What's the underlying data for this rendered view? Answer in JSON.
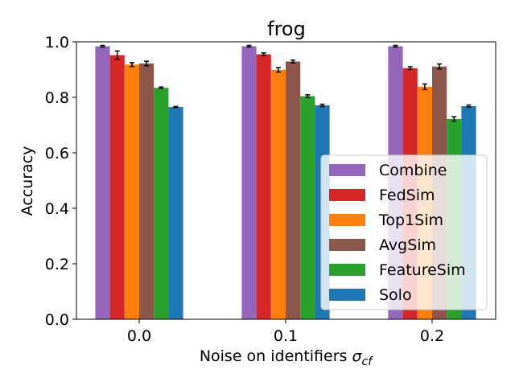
{
  "chart_data": {
    "type": "bar",
    "title": "frog",
    "xlabel_prefix": "Noise on identifiers ",
    "xlabel_symbol": "σ",
    "xlabel_subscript": "cf",
    "ylabel": "Accuracy",
    "categories": [
      "0.0",
      "0.1",
      "0.2"
    ],
    "ylim": [
      0.0,
      1.0
    ],
    "yticks": [
      "0.0",
      "0.2",
      "0.4",
      "0.6",
      "0.8",
      "1.0"
    ],
    "grid": false,
    "legend_position": "lower-right",
    "series": [
      {
        "name": "Combine",
        "color": "#9467bd",
        "values": [
          0.984,
          0.984,
          0.984
        ],
        "errors": [
          0.003,
          0.003,
          0.003
        ]
      },
      {
        "name": "FedSim",
        "color": "#d62728",
        "values": [
          0.952,
          0.955,
          0.905
        ],
        "errors": [
          0.015,
          0.005,
          0.005
        ]
      },
      {
        "name": "Top1Sim",
        "color": "#ff7f0e",
        "values": [
          0.918,
          0.899,
          0.838
        ],
        "errors": [
          0.007,
          0.008,
          0.01
        ]
      },
      {
        "name": "AvgSim",
        "color": "#8c564b",
        "values": [
          0.922,
          0.929,
          0.911
        ],
        "errors": [
          0.008,
          0.005,
          0.009
        ]
      },
      {
        "name": "FeatureSim",
        "color": "#2ca02c",
        "values": [
          0.834,
          0.804,
          0.722
        ],
        "errors": [
          0.003,
          0.005,
          0.008
        ]
      },
      {
        "name": "Solo",
        "color": "#1f77b4",
        "values": [
          0.765,
          0.771,
          0.768
        ],
        "errors": [
          0.002,
          0.004,
          0.004
        ]
      }
    ]
  }
}
